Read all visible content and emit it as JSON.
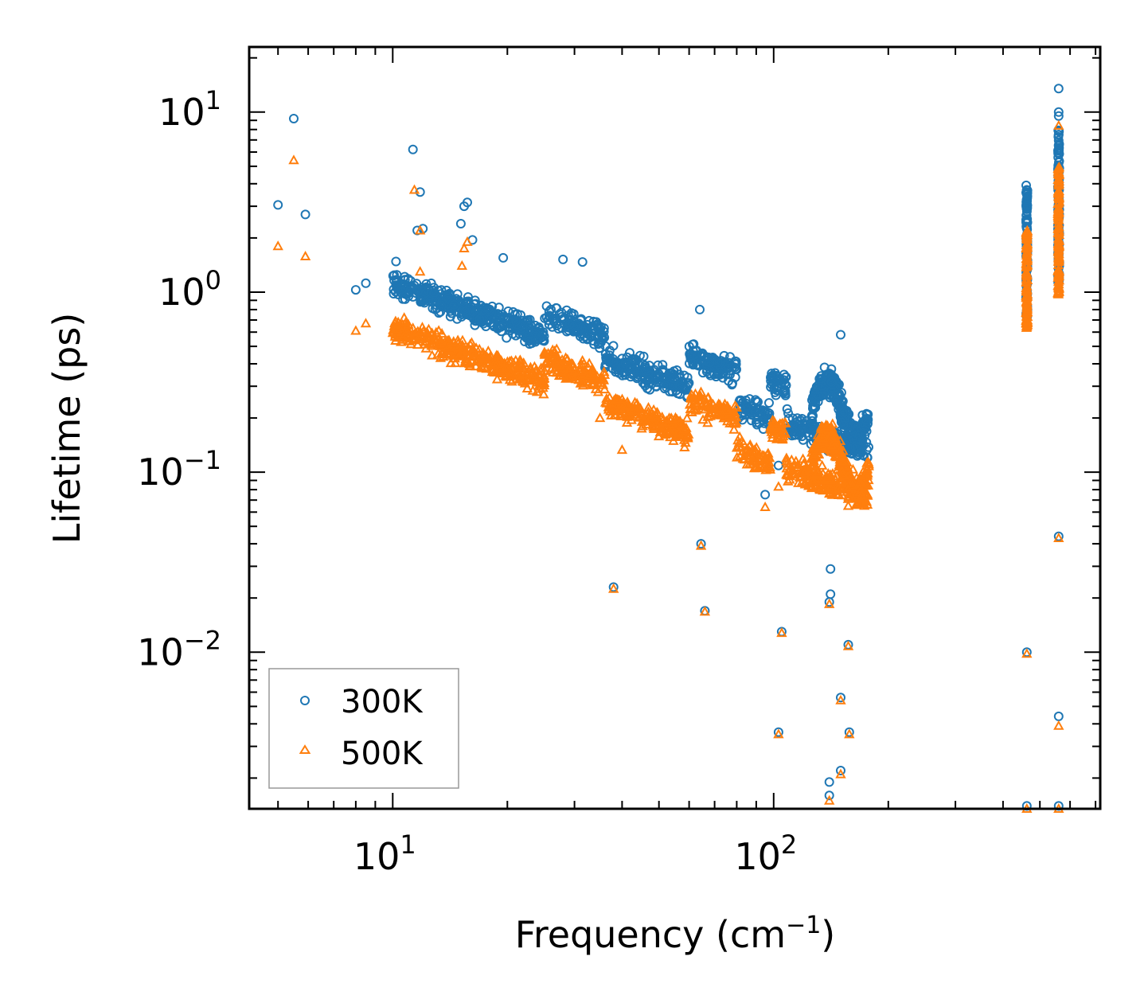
{
  "chart_data": {
    "type": "scatter",
    "xscale": "log",
    "yscale": "log",
    "xlabel": "Frequency (cm",
    "xlabel_sup": "−1",
    "xlabel_suffix": ")",
    "ylabel": "Lifetime (ps)",
    "xlim": [
      4.2,
      720
    ],
    "ylim": [
      0.00135,
      23
    ],
    "x_ticks": [
      {
        "base": "10",
        "exp": "1",
        "value": 10
      },
      {
        "base": "10",
        "exp": "2",
        "value": 100
      }
    ],
    "y_ticks": [
      {
        "base": "10",
        "exp": "1",
        "value": 10
      },
      {
        "base": "10",
        "exp": "0",
        "value": 1
      },
      {
        "base": "10",
        "exp": "−1",
        "value": 0.1
      },
      {
        "base": "10",
        "exp": "−2",
        "value": 0.01
      }
    ],
    "legend_position": "lower-left",
    "series": [
      {
        "name": "300K",
        "marker": "circle",
        "color": "#1f77b4",
        "bands": [
          {
            "x": 5.0,
            "y": 3.05
          },
          {
            "x": 5.5,
            "y": 9.2
          },
          {
            "x": 5.9,
            "y": 2.7
          },
          {
            "x": 8.0,
            "y": 1.03
          },
          {
            "x": 8.5,
            "y": 1.12
          },
          {
            "x": 11.3,
            "y": 6.2
          },
          {
            "x": 11.8,
            "y": 3.6
          },
          {
            "x": 11.6,
            "y": 2.2
          },
          {
            "x": 12.0,
            "y": 2.25
          },
          {
            "x": 15.1,
            "y": 2.4
          },
          {
            "x": 15.4,
            "y": 3.0
          },
          {
            "x": 15.7,
            "y": 3.15
          },
          {
            "x": 16.2,
            "y": 1.95
          },
          {
            "x": 10.2,
            "y": 1.48
          },
          {
            "x": 19.5,
            "y": 1.55
          },
          {
            "x": 28.0,
            "y": 1.52
          },
          {
            "x": 31.5,
            "y": 1.47
          },
          {
            "x": 64.0,
            "y": 0.8
          },
          {
            "x": 64.5,
            "y": 0.04
          },
          {
            "x": 66.0,
            "y": 0.017
          },
          {
            "x": 38.0,
            "y": 0.023
          },
          {
            "x": 95.0,
            "y": 0.075
          },
          {
            "x": 103.0,
            "y": 0.109
          },
          {
            "x": 105.0,
            "y": 0.013
          },
          {
            "x": 103.0,
            "y": 0.0036
          },
          {
            "x": 141.0,
            "y": 0.029
          },
          {
            "x": 141.0,
            "y": 0.021
          },
          {
            "x": 140.0,
            "y": 0.019
          },
          {
            "x": 150.0,
            "y": 0.0056
          },
          {
            "x": 157.0,
            "y": 0.011
          },
          {
            "x": 158.0,
            "y": 0.0036
          },
          {
            "x": 140.0,
            "y": 0.0019
          },
          {
            "x": 140.0,
            "y": 0.0016
          },
          {
            "x": 150.0,
            "y": 0.0022
          },
          {
            "x": 150.0,
            "y": 0.58
          },
          {
            "x": 168.0,
            "y": 0.16
          },
          {
            "x": 173.0,
            "y": 0.172
          },
          {
            "x": 462.0,
            "y": 0.01
          },
          {
            "x": 462.0,
            "y": 0.0014
          },
          {
            "x": 560.0,
            "y": 0.044
          },
          {
            "x": 560.0,
            "y": 0.0044
          },
          {
            "x": 560.0,
            "y": 0.0014
          },
          {
            "x": 560.0,
            "y": 13.5
          },
          {
            "x": 560.0,
            "y": 10.0
          },
          {
            "x": 560.0,
            "y": 9.5
          }
        ]
      },
      {
        "name": "500K",
        "marker": "triangle",
        "color": "#ff7f0e",
        "bands": [
          {
            "x": 5.0,
            "y": 1.8
          },
          {
            "x": 5.5,
            "y": 5.4
          },
          {
            "x": 5.9,
            "y": 1.58
          },
          {
            "x": 8.0,
            "y": 0.61
          },
          {
            "x": 8.5,
            "y": 0.67
          },
          {
            "x": 11.4,
            "y": 3.7
          },
          {
            "x": 11.8,
            "y": 2.2
          },
          {
            "x": 11.8,
            "y": 1.3
          },
          {
            "x": 15.2,
            "y": 1.4
          },
          {
            "x": 15.4,
            "y": 1.75
          },
          {
            "x": 15.7,
            "y": 1.9
          },
          {
            "x": 35.0,
            "y": 0.2
          },
          {
            "x": 40.0,
            "y": 0.133
          },
          {
            "x": 38.0,
            "y": 0.0225
          },
          {
            "x": 64.5,
            "y": 0.039
          },
          {
            "x": 66.0,
            "y": 0.0168
          },
          {
            "x": 95.0,
            "y": 0.064
          },
          {
            "x": 103.0,
            "y": 0.083
          },
          {
            "x": 105.0,
            "y": 0.0128
          },
          {
            "x": 103.0,
            "y": 0.0035
          },
          {
            "x": 140.0,
            "y": 0.076
          },
          {
            "x": 157.0,
            "y": 0.065
          },
          {
            "x": 140.0,
            "y": 0.0185
          },
          {
            "x": 157.0,
            "y": 0.0108
          },
          {
            "x": 150.0,
            "y": 0.0054
          },
          {
            "x": 158.0,
            "y": 0.0035
          },
          {
            "x": 140.0,
            "y": 0.0015
          },
          {
            "x": 150.0,
            "y": 0.0021
          },
          {
            "x": 176.0,
            "y": 0.103
          },
          {
            "x": 462.0,
            "y": 0.0098
          },
          {
            "x": 462.0,
            "y": 0.00135
          },
          {
            "x": 560.0,
            "y": 0.043
          },
          {
            "x": 560.0,
            "y": 0.0039
          },
          {
            "x": 560.0,
            "y": 0.00135
          },
          {
            "x": 560.0,
            "y": 8.4
          }
        ]
      }
    ]
  },
  "legend": {
    "items": [
      {
        "label": "300K"
      },
      {
        "label": "500K"
      }
    ]
  }
}
